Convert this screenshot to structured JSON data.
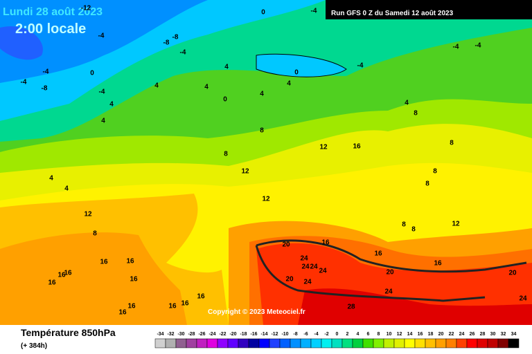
{
  "header": {
    "date": "Lundi 28 août 2023",
    "time": "2:00 locale",
    "run": "Run GFS 0 Z du Samedi 12 août 2023"
  },
  "copyright": "Copyright © 2023 Meteociel.fr",
  "footer": {
    "title": "Température 850hPa",
    "lead": "(+ 384h)"
  },
  "scale": {
    "values": [
      -34,
      -32,
      -30,
      -28,
      -26,
      -24,
      -22,
      -20,
      -18,
      -16,
      -14,
      -12,
      -10,
      -8,
      -6,
      -4,
      -2,
      0,
      2,
      4,
      6,
      8,
      10,
      12,
      14,
      16,
      18,
      20,
      22,
      24,
      26,
      28,
      30,
      32,
      34
    ],
    "colors": [
      "#d0d0d0",
      "#b0b0b0",
      "#906090",
      "#a040a0",
      "#c020c0",
      "#e000e0",
      "#9000ff",
      "#6000ff",
      "#3000c0",
      "#0000a0",
      "#0000ff",
      "#2040ff",
      "#0060ff",
      "#0090ff",
      "#00b0ff",
      "#00d0ff",
      "#00f0f0",
      "#00e0c0",
      "#00e080",
      "#00d040",
      "#40e000",
      "#80f000",
      "#c0f000",
      "#e0f000",
      "#ffff00",
      "#ffe000",
      "#ffc000",
      "#ffa000",
      "#ff8000",
      "#ff4000",
      "#ff0000",
      "#e00000",
      "#c00000",
      "#800000",
      "#000000"
    ]
  },
  "contour_labels": [
    -12,
    -4,
    0,
    -4,
    -8,
    -8,
    -4,
    -4,
    -4,
    -4,
    0,
    -4,
    -4,
    -8,
    -4,
    4,
    0,
    4,
    4,
    4,
    4,
    0,
    4,
    4,
    4,
    8,
    8,
    12,
    16,
    8,
    8,
    12,
    8,
    8,
    4,
    4,
    12,
    12,
    8,
    8,
    8,
    12,
    20,
    16,
    16,
    24,
    24,
    24,
    24,
    16,
    16,
    16,
    16,
    16,
    16,
    16,
    20,
    24,
    20,
    20,
    24,
    24,
    28,
    16,
    16,
    16,
    16,
    16
  ]
}
